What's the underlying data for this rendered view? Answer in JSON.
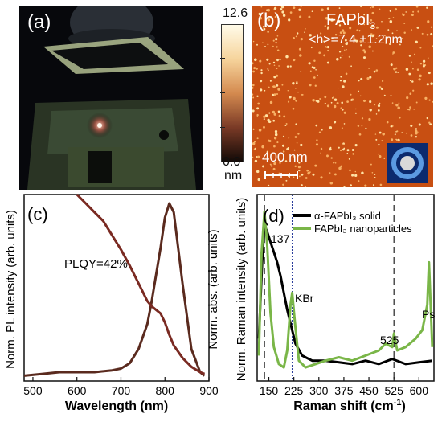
{
  "panel_a": {
    "label": "(a)"
  },
  "panel_b": {
    "label": "(b)",
    "material": "FAPbI",
    "material_sub": "3",
    "height_stat": "<h>=7.4 ±1.2nm",
    "scalebar": "400 nm",
    "colorbar": {
      "max": "12.6",
      "min": "0.0",
      "unit": "nm",
      "colors": [
        "#fffbe9",
        "#f6d49c",
        "#d48a4f",
        "#7a3a26",
        "#120a07"
      ]
    }
  },
  "chart_data": [
    {
      "type": "line",
      "panel_label": "(c)",
      "xlabel": "Wavelength (nm)",
      "ylabel_left": "Norm. PL intensity (arb. units)",
      "ylabel_right": "Norm. abs. (arb. units)",
      "annotation": "PLQY=42%",
      "xlim": [
        480,
        900
      ],
      "ylim": [
        0,
        1.05
      ],
      "xticks": [
        500,
        600,
        700,
        800,
        900
      ],
      "series": [
        {
          "color": "#5a2a1e",
          "x": [
            480,
            520,
            560,
            600,
            640,
            680,
            700,
            720,
            740,
            760,
            770,
            780,
            790,
            800,
            810,
            820,
            840,
            860,
            880,
            890
          ],
          "y": [
            0.03,
            0.04,
            0.05,
            0.05,
            0.05,
            0.06,
            0.07,
            0.1,
            0.18,
            0.32,
            0.45,
            0.6,
            0.75,
            0.92,
            1.0,
            0.95,
            0.55,
            0.18,
            0.05,
            0.03
          ]
        },
        {
          "color": "#7a2a22",
          "x": [
            600,
            620,
            640,
            660,
            680,
            700,
            720,
            740,
            760,
            770,
            780,
            790,
            800,
            810,
            820,
            840,
            860,
            880,
            890
          ],
          "y": [
            1.05,
            1.0,
            0.95,
            0.9,
            0.82,
            0.74,
            0.65,
            0.55,
            0.45,
            0.42,
            0.4,
            0.38,
            0.33,
            0.26,
            0.2,
            0.13,
            0.08,
            0.05,
            0.04
          ]
        }
      ]
    },
    {
      "type": "line",
      "panel_label": "(d)",
      "xlabel": "Raman shift (cm",
      "xlabel_sup": "-1",
      "xlabel_end": ")",
      "ylabel": "Norm. Raman intensity (arb. units)",
      "xlim": [
        115,
        645
      ],
      "ylim": [
        0,
        1.1
      ],
      "xticks": [
        150,
        300,
        450,
        600
      ],
      "extra_tick_labels": [
        "225",
        "375",
        "525"
      ],
      "annotations": [
        "137",
        "KBr",
        "525",
        "Ps"
      ],
      "series": [
        {
          "name": "α-FAPbI₃ solid",
          "color": "#000000",
          "x": [
            120,
            130,
            137,
            145,
            155,
            165,
            175,
            185,
            195,
            205,
            215,
            230,
            250,
            280,
            320,
            360,
            400,
            440,
            480,
            520,
            560,
            600,
            640
          ],
          "y": [
            0.25,
            0.7,
            0.92,
            0.88,
            0.82,
            0.76,
            0.7,
            0.62,
            0.52,
            0.42,
            0.34,
            0.22,
            0.15,
            0.12,
            0.12,
            0.11,
            0.1,
            0.12,
            0.1,
            0.13,
            0.1,
            0.11,
            0.12
          ]
        },
        {
          "name": "FAPbI₃ nanoparticles",
          "color": "#7ab648",
          "x": [
            120,
            128,
            137,
            145,
            155,
            165,
            180,
            195,
            205,
            215,
            220,
            228,
            240,
            260,
            290,
            320,
            360,
            400,
            440,
            480,
            500,
            520,
            525,
            535,
            560,
            590,
            610,
            625,
            630,
            640
          ],
          "y": [
            0.15,
            0.75,
            1.0,
            0.8,
            0.4,
            0.2,
            0.1,
            0.08,
            0.18,
            0.45,
            0.52,
            0.35,
            0.12,
            0.08,
            0.1,
            0.12,
            0.14,
            0.12,
            0.15,
            0.18,
            0.22,
            0.2,
            0.28,
            0.18,
            0.2,
            0.25,
            0.3,
            0.45,
            0.7,
            0.2
          ]
        }
      ],
      "reference_lines": [
        {
          "x": 137,
          "style": "dash",
          "color": "#222222"
        },
        {
          "x": 220,
          "style": "dot",
          "color": "#2c3e9c"
        },
        {
          "x": 525,
          "style": "dash",
          "color": "#222222"
        }
      ]
    }
  ]
}
